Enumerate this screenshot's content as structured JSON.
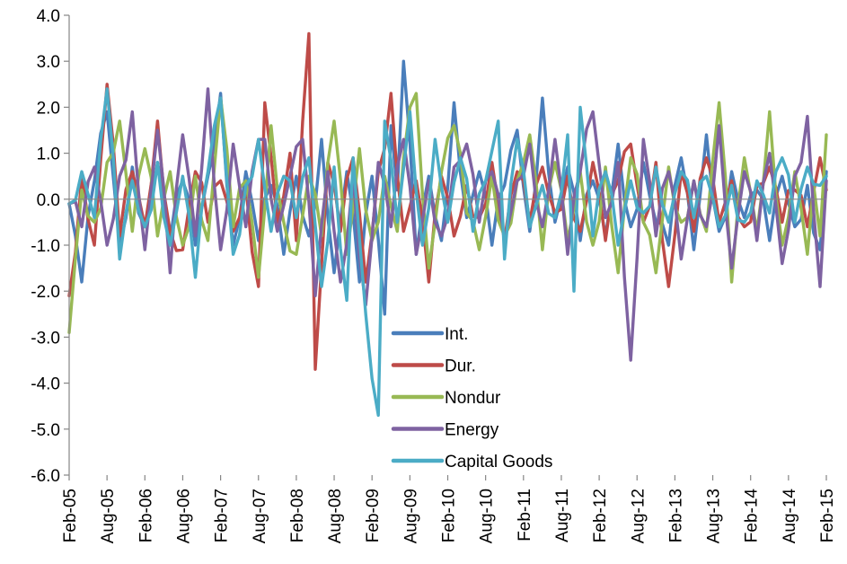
{
  "chart_data": {
    "type": "line",
    "title": "",
    "xlabel": "",
    "ylabel": "",
    "ylim": [
      -6.0,
      4.0
    ],
    "y_ticks": [
      "4.0",
      "3.0",
      "2.0",
      "1.0",
      "0.0",
      "-1.0",
      "-2.0",
      "-3.0",
      "-4.0",
      "-5.0",
      "-6.0"
    ],
    "x_tick_labels": [
      "Feb-05",
      "Aug-05",
      "Feb-06",
      "Aug-06",
      "Feb-07",
      "Aug-07",
      "Feb-08",
      "Aug-08",
      "Feb-09",
      "Aug-09",
      "Feb-10",
      "Aug-10",
      "Feb-11",
      "Aug-11",
      "Feb-12",
      "Aug-12",
      "Feb-13",
      "Aug-13",
      "Feb-14",
      "Aug-14",
      "Feb-15"
    ],
    "x_tick_month_index": [
      0,
      6,
      12,
      18,
      24,
      30,
      36,
      42,
      48,
      54,
      60,
      66,
      72,
      78,
      84,
      90,
      96,
      102,
      108,
      114,
      120
    ],
    "x_month_count": 121,
    "grid": false,
    "legend_position": "lower-center-right",
    "series": [
      {
        "name": "Int.",
        "color": "#4a7ebb",
        "keypoints": [
          [
            0,
            -0.1
          ],
          [
            2,
            -1.8
          ],
          [
            4,
            0.4
          ],
          [
            6,
            1.9
          ],
          [
            8,
            -1.0
          ],
          [
            10,
            0.7
          ],
          [
            12,
            -0.6
          ],
          [
            14,
            0.8
          ],
          [
            16,
            -0.9
          ],
          [
            18,
            0.4
          ],
          [
            20,
            -1.0
          ],
          [
            22,
            0.5
          ],
          [
            24,
            2.3
          ],
          [
            26,
            -1.0
          ],
          [
            28,
            0.6
          ],
          [
            30,
            -0.9
          ],
          [
            32,
            0.3
          ],
          [
            34,
            -1.2
          ],
          [
            36,
            0.5
          ],
          [
            38,
            -0.8
          ],
          [
            40,
            1.3
          ],
          [
            42,
            -1.6
          ],
          [
            44,
            0.6
          ],
          [
            46,
            -1.8
          ],
          [
            48,
            0.5
          ],
          [
            50,
            -2.5
          ],
          [
            51,
            1.6
          ],
          [
            52,
            0.2
          ],
          [
            53,
            3.0
          ],
          [
            55,
            -1.2
          ],
          [
            57,
            0.5
          ],
          [
            59,
            -0.9
          ],
          [
            61,
            2.1
          ],
          [
            63,
            -0.4
          ],
          [
            65,
            0.6
          ],
          [
            67,
            -1.0
          ],
          [
            69,
            0.3
          ],
          [
            71,
            1.5
          ],
          [
            73,
            -0.7
          ],
          [
            75,
            2.2
          ],
          [
            77,
            -0.5
          ],
          [
            79,
            0.7
          ],
          [
            81,
            -0.9
          ],
          [
            83,
            0.4
          ],
          [
            85,
            -0.8
          ],
          [
            87,
            1.2
          ],
          [
            89,
            -0.6
          ],
          [
            91,
            0.8
          ],
          [
            93,
            -0.5
          ],
          [
            95,
            -1.0
          ],
          [
            97,
            0.9
          ],
          [
            99,
            -1.1
          ],
          [
            101,
            1.4
          ],
          [
            103,
            -0.7
          ],
          [
            105,
            0.6
          ],
          [
            107,
            -0.4
          ],
          [
            109,
            0.2
          ],
          [
            111,
            -0.9
          ],
          [
            113,
            0.5
          ],
          [
            115,
            -0.6
          ],
          [
            117,
            0.3
          ],
          [
            119,
            -1.1
          ],
          [
            120,
            0.6
          ]
        ]
      },
      {
        "name": "Dur.",
        "color": "#be4b48",
        "keypoints": [
          [
            0,
            -2.1
          ],
          [
            2,
            0.5
          ],
          [
            4,
            -1.0
          ],
          [
            6,
            2.5
          ],
          [
            8,
            -0.8
          ],
          [
            10,
            0.6
          ],
          [
            12,
            -0.6
          ],
          [
            14,
            1.7
          ],
          [
            16,
            -0.7
          ],
          [
            18,
            -1.1
          ],
          [
            20,
            0.6
          ],
          [
            22,
            -0.5
          ],
          [
            24,
            0.4
          ],
          [
            26,
            -0.7
          ],
          [
            28,
            0.3
          ],
          [
            30,
            -1.9
          ],
          [
            31,
            2.1
          ],
          [
            33,
            -0.5
          ],
          [
            35,
            1.0
          ],
          [
            36,
            -0.9
          ],
          [
            38,
            3.6
          ],
          [
            39,
            -3.7
          ],
          [
            41,
            0.8
          ],
          [
            43,
            -0.7
          ],
          [
            45,
            0.9
          ],
          [
            47,
            -1.8
          ],
          [
            49,
            0.6
          ],
          [
            51,
            2.3
          ],
          [
            53,
            -0.7
          ],
          [
            55,
            0.4
          ],
          [
            57,
            -1.8
          ],
          [
            59,
            0.5
          ],
          [
            61,
            -0.8
          ],
          [
            63,
            0.3
          ],
          [
            65,
            -0.4
          ],
          [
            67,
            0.8
          ],
          [
            69,
            -0.9
          ],
          [
            71,
            0.6
          ],
          [
            73,
            -0.5
          ],
          [
            75,
            0.7
          ],
          [
            77,
            -0.3
          ],
          [
            79,
            0.5
          ],
          [
            81,
            -0.7
          ],
          [
            83,
            0.8
          ],
          [
            85,
            -0.9
          ],
          [
            87,
            0.4
          ],
          [
            89,
            1.2
          ],
          [
            91,
            -0.5
          ],
          [
            93,
            0.8
          ],
          [
            95,
            -1.9
          ],
          [
            97,
            0.6
          ],
          [
            99,
            -0.7
          ],
          [
            101,
            0.9
          ],
          [
            103,
            -0.5
          ],
          [
            105,
            0.4
          ],
          [
            107,
            -0.6
          ],
          [
            109,
            0.3
          ],
          [
            111,
            0.7
          ],
          [
            113,
            -0.5
          ],
          [
            115,
            0.2
          ],
          [
            117,
            -0.6
          ],
          [
            119,
            0.9
          ],
          [
            120,
            0.2
          ]
        ]
      },
      {
        "name": "Nondur",
        "color": "#98b954",
        "keypoints": [
          [
            0,
            -2.9
          ],
          [
            2,
            0.2
          ],
          [
            4,
            -0.5
          ],
          [
            6,
            0.8
          ],
          [
            8,
            1.7
          ],
          [
            10,
            -0.7
          ],
          [
            12,
            1.1
          ],
          [
            14,
            -0.8
          ],
          [
            16,
            0.6
          ],
          [
            18,
            -1.0
          ],
          [
            20,
            0.5
          ],
          [
            22,
            -0.9
          ],
          [
            24,
            2.2
          ],
          [
            26,
            -0.6
          ],
          [
            28,
            0.4
          ],
          [
            30,
            -1.7
          ],
          [
            32,
            1.6
          ],
          [
            34,
            -0.5
          ],
          [
            36,
            -1.2
          ],
          [
            38,
            0.5
          ],
          [
            40,
            -0.8
          ],
          [
            42,
            1.7
          ],
          [
            44,
            -1.2
          ],
          [
            46,
            1.1
          ],
          [
            48,
            -0.9
          ],
          [
            50,
            0.5
          ],
          [
            52,
            -0.7
          ],
          [
            54,
            2.0
          ],
          [
            55,
            2.3
          ],
          [
            57,
            -1.5
          ],
          [
            59,
            0.6
          ],
          [
            61,
            1.6
          ],
          [
            63,
            -0.3
          ],
          [
            65,
            -1.1
          ],
          [
            67,
            0.5
          ],
          [
            69,
            -0.8
          ],
          [
            71,
            0.4
          ],
          [
            73,
            1.4
          ],
          [
            75,
            -1.1
          ],
          [
            77,
            0.8
          ],
          [
            79,
            -0.9
          ],
          [
            81,
            0.6
          ],
          [
            83,
            -1.0
          ],
          [
            85,
            0.7
          ],
          [
            87,
            -1.6
          ],
          [
            89,
            0.9
          ],
          [
            91,
            -0.5
          ],
          [
            93,
            -1.6
          ],
          [
            95,
            0.7
          ],
          [
            97,
            -0.5
          ],
          [
            99,
            0.4
          ],
          [
            101,
            -0.7
          ],
          [
            103,
            2.1
          ],
          [
            105,
            -1.8
          ],
          [
            107,
            0.9
          ],
          [
            109,
            -0.7
          ],
          [
            111,
            1.9
          ],
          [
            113,
            -1.0
          ],
          [
            115,
            0.6
          ],
          [
            117,
            -1.2
          ],
          [
            118,
            0.3
          ],
          [
            119,
            -0.8
          ],
          [
            120,
            1.4
          ]
        ]
      },
      {
        "name": "Energy",
        "color": "#7e62a1",
        "keypoints": [
          [
            0,
            -0.1
          ],
          [
            2,
            -0.6
          ],
          [
            4,
            0.7
          ],
          [
            6,
            -1.0
          ],
          [
            8,
            0.5
          ],
          [
            10,
            1.9
          ],
          [
            12,
            -1.1
          ],
          [
            14,
            1.5
          ],
          [
            16,
            -1.6
          ],
          [
            18,
            1.4
          ],
          [
            20,
            -0.8
          ],
          [
            22,
            2.4
          ],
          [
            24,
            -1.1
          ],
          [
            26,
            1.2
          ],
          [
            28,
            -0.6
          ],
          [
            30,
            1.3
          ],
          [
            31,
            1.3
          ],
          [
            33,
            -0.7
          ],
          [
            35,
            0.5
          ],
          [
            37,
            1.3
          ],
          [
            39,
            -2.1
          ],
          [
            41,
            0.6
          ],
          [
            43,
            -1.8
          ],
          [
            45,
            0.5
          ],
          [
            47,
            -2.3
          ],
          [
            49,
            0.8
          ],
          [
            51,
            -0.6
          ],
          [
            53,
            1.3
          ],
          [
            55,
            -1.2
          ],
          [
            57,
            0.4
          ],
          [
            59,
            -0.8
          ],
          [
            61,
            0.7
          ],
          [
            63,
            1.2
          ],
          [
            65,
            -0.5
          ],
          [
            67,
            0.6
          ],
          [
            69,
            -0.9
          ],
          [
            71,
            0.4
          ],
          [
            73,
            1.2
          ],
          [
            75,
            -0.6
          ],
          [
            77,
            1.3
          ],
          [
            79,
            -1.2
          ],
          [
            81,
            0.6
          ],
          [
            83,
            1.9
          ],
          [
            85,
            -0.4
          ],
          [
            87,
            0.8
          ],
          [
            89,
            -3.5
          ],
          [
            91,
            1.3
          ],
          [
            93,
            -0.8
          ],
          [
            95,
            0.6
          ],
          [
            97,
            -1.3
          ],
          [
            99,
            0.4
          ],
          [
            101,
            -0.6
          ],
          [
            103,
            1.6
          ],
          [
            105,
            -1.5
          ],
          [
            107,
            0.6
          ],
          [
            109,
            -0.9
          ],
          [
            111,
            1.0
          ],
          [
            113,
            -1.4
          ],
          [
            115,
            0.5
          ],
          [
            117,
            1.8
          ],
          [
            119,
            -1.9
          ],
          [
            120,
            0.4
          ]
        ]
      },
      {
        "name": "Capital Goods",
        "color": "#4bacc6",
        "keypoints": [
          [
            0,
            -0.1
          ],
          [
            2,
            0.6
          ],
          [
            4,
            -0.4
          ],
          [
            6,
            2.4
          ],
          [
            8,
            -1.3
          ],
          [
            10,
            0.4
          ],
          [
            12,
            -0.6
          ],
          [
            14,
            0.8
          ],
          [
            16,
            -1.0
          ],
          [
            18,
            0.5
          ],
          [
            20,
            -1.7
          ],
          [
            22,
            0.6
          ],
          [
            24,
            2.2
          ],
          [
            26,
            -1.2
          ],
          [
            28,
            0.3
          ],
          [
            30,
            1.3
          ],
          [
            32,
            -0.7
          ],
          [
            34,
            0.5
          ],
          [
            36,
            -0.4
          ],
          [
            38,
            0.9
          ],
          [
            40,
            -1.9
          ],
          [
            42,
            0.7
          ],
          [
            44,
            -2.2
          ],
          [
            45,
            0.9
          ],
          [
            47,
            -2.5
          ],
          [
            49,
            -4.7
          ],
          [
            50,
            1.7
          ],
          [
            52,
            -0.5
          ],
          [
            54,
            1.9
          ],
          [
            56,
            -1.0
          ],
          [
            58,
            1.3
          ],
          [
            60,
            -0.5
          ],
          [
            62,
            0.9
          ],
          [
            64,
            -0.7
          ],
          [
            66,
            0.4
          ],
          [
            68,
            1.7
          ],
          [
            69,
            -1.3
          ],
          [
            71,
            1.3
          ],
          [
            73,
            -0.6
          ],
          [
            75,
            0.3
          ],
          [
            77,
            -0.4
          ],
          [
            79,
            1.4
          ],
          [
            80,
            -2.0
          ],
          [
            81,
            2.0
          ],
          [
            83,
            -0.8
          ],
          [
            85,
            0.6
          ],
          [
            87,
            -1.0
          ],
          [
            89,
            0.4
          ],
          [
            91,
            -0.3
          ],
          [
            93,
            0.7
          ],
          [
            95,
            -0.5
          ],
          [
            97,
            0.6
          ],
          [
            99,
            -0.4
          ],
          [
            101,
            0.5
          ],
          [
            103,
            -0.6
          ],
          [
            105,
            0.3
          ],
          [
            107,
            -0.5
          ],
          [
            109,
            0.4
          ],
          [
            111,
            -0.3
          ],
          [
            113,
            0.9
          ],
          [
            115,
            -0.5
          ],
          [
            117,
            0.7
          ],
          [
            119,
            0.3
          ],
          [
            120,
            0.5
          ]
        ]
      }
    ]
  }
}
